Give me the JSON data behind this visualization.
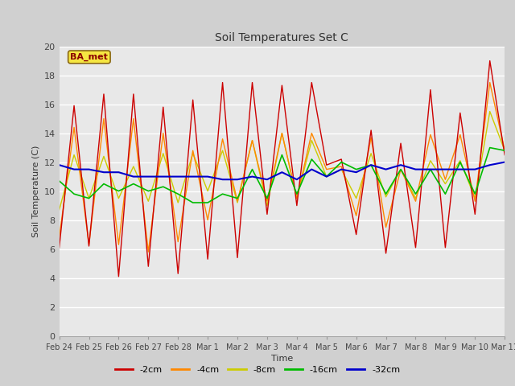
{
  "title": "Soil Temperatures Set C",
  "xlabel": "Time",
  "ylabel": "Soil Temperature (C)",
  "ylim": [
    0,
    20
  ],
  "yticks": [
    0,
    2,
    4,
    6,
    8,
    10,
    12,
    14,
    16,
    18,
    20
  ],
  "label_box_text": "BA_met",
  "series_colors": {
    "-2cm": "#cc0000",
    "-4cm": "#ff8800",
    "-8cm": "#cccc00",
    "-16cm": "#00bb00",
    "-32cm": "#0000cc"
  },
  "x_labels": [
    "Feb 24",
    "Feb 25",
    "Feb 26",
    "Feb 27",
    "Feb 28",
    "Mar 1",
    "Mar 2",
    "Mar 3",
    "Mar 4",
    "Mar 5",
    "Mar 6",
    "Mar 7",
    "Mar 8",
    "Mar 9",
    "Mar 10",
    "Mar 11"
  ],
  "neg2cm": [
    6.1,
    15.9,
    6.2,
    16.7,
    4.1,
    16.7,
    4.8,
    15.8,
    4.3,
    16.3,
    5.3,
    17.5,
    5.4,
    17.5,
    8.4,
    17.3,
    9.0,
    17.5,
    11.8,
    12.2,
    7.0,
    14.2,
    5.7,
    13.3,
    6.1,
    17.0,
    6.1,
    15.4,
    8.4,
    19.0,
    12.5
  ],
  "neg4cm": [
    6.8,
    14.4,
    6.3,
    15.0,
    6.3,
    15.0,
    5.8,
    14.0,
    6.5,
    12.8,
    8.0,
    13.6,
    9.3,
    13.5,
    9.3,
    14.0,
    9.5,
    14.0,
    11.5,
    11.7,
    8.3,
    13.7,
    7.5,
    11.5,
    9.3,
    13.9,
    10.8,
    13.9,
    9.3,
    17.5,
    12.8
  ],
  "neg8cm": [
    8.7,
    12.5,
    9.5,
    12.4,
    9.5,
    11.7,
    9.3,
    12.6,
    9.2,
    12.6,
    10.0,
    12.8,
    9.2,
    13.5,
    9.0,
    14.0,
    9.5,
    13.5,
    11.0,
    11.5,
    9.5,
    12.6,
    9.6,
    11.5,
    9.5,
    12.1,
    10.5,
    12.1,
    9.5,
    15.5,
    12.8
  ],
  "neg16cm": [
    10.7,
    9.8,
    9.5,
    10.5,
    10.0,
    10.5,
    10.0,
    10.3,
    9.8,
    9.2,
    9.2,
    9.8,
    9.5,
    11.5,
    9.5,
    12.5,
    9.8,
    12.2,
    11.0,
    12.0,
    11.5,
    11.8,
    9.8,
    11.5,
    9.8,
    11.5,
    9.8,
    12.0,
    9.8,
    13.0,
    12.8
  ],
  "neg32cm": [
    11.8,
    11.5,
    11.5,
    11.3,
    11.3,
    11.0,
    11.0,
    11.0,
    11.0,
    11.0,
    11.0,
    10.8,
    10.8,
    11.0,
    10.8,
    11.3,
    10.8,
    11.5,
    11.0,
    11.5,
    11.3,
    11.8,
    11.5,
    11.8,
    11.5,
    11.5,
    11.5,
    11.5,
    11.5,
    11.8,
    12.0
  ]
}
